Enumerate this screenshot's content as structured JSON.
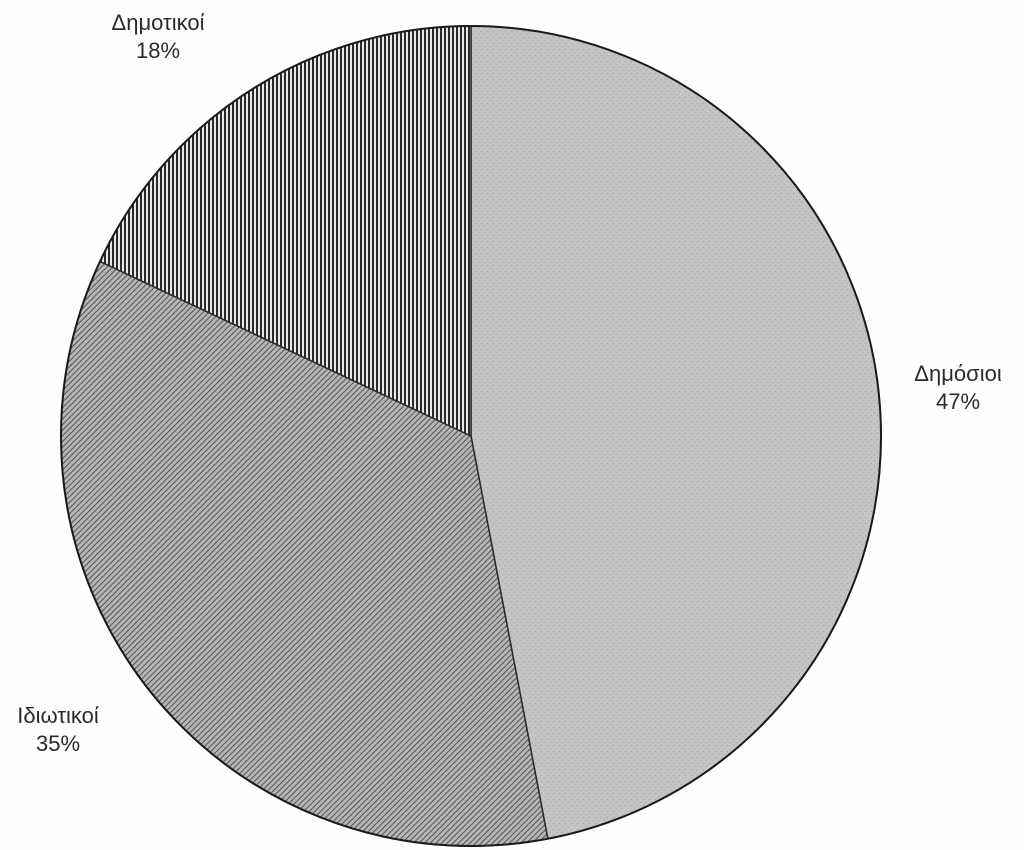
{
  "chart_data": {
    "type": "pie",
    "title": "",
    "start_angle_deg": 0,
    "direction": "clockwise",
    "slices": [
      {
        "label": "Δημόσιοι",
        "value": 47,
        "value_label": "47%",
        "fill": "#b8b8b8",
        "pattern": "solid-grey"
      },
      {
        "label": "Ιδιωτικοί",
        "value": 35,
        "value_label": "35%",
        "fill": "#8a8a8a",
        "pattern": "diagonal-lines"
      },
      {
        "label": "Δημοτικοί",
        "value": 18,
        "value_label": "18%",
        "fill": "#1e1e1e",
        "pattern": "vertical-lines"
      }
    ]
  }
}
